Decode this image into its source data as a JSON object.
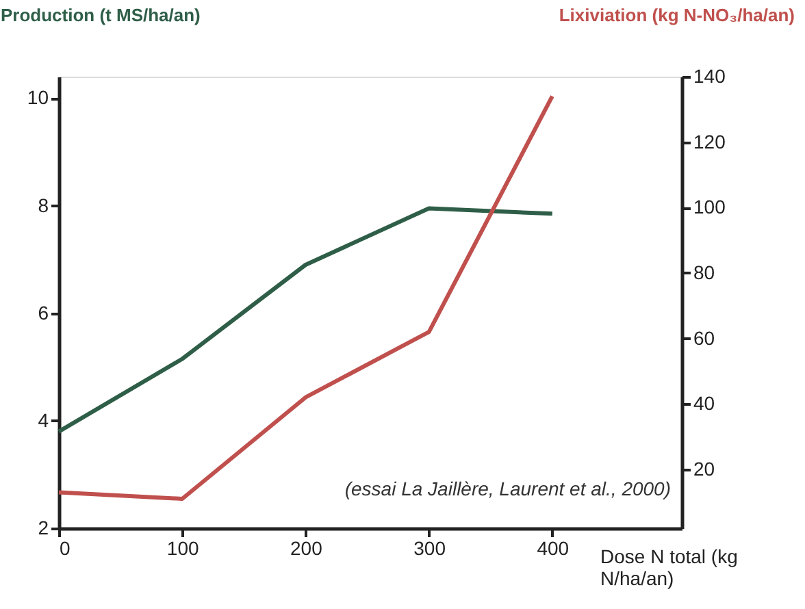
{
  "chart_data": {
    "type": "line",
    "xlabel": "Dose N total (kg N/ha/an)",
    "ylabel": "Production (t MS/ha/an)",
    "y2label": "Lixiviation (kg N-NO₃/ha/an)",
    "x": [
      0,
      100,
      200,
      300,
      400
    ],
    "series": [
      {
        "color": "#2f5e48",
        "values": [
          3.8,
          5.15,
          6.9,
          7.95,
          7.85
        ]
      },
      {
        "color": "#c0504d",
        "axis": "y2",
        "values": [
          13,
          11,
          42,
          62,
          134
        ]
      }
    ],
    "xlim": [
      0,
      505
    ],
    "xticks": [
      0,
      100,
      200,
      300,
      400
    ],
    "ylim": [
      2,
      10.4
    ],
    "yticks": [
      2,
      4,
      6,
      8,
      10
    ],
    "y2lim": [
      2,
      140
    ],
    "y2ticks": [
      20,
      40,
      60,
      80,
      100,
      120,
      140
    ],
    "annotations": [
      "(essai La Jaillère, Laurent et al., 2000)"
    ],
    "grid": false,
    "marker": "none",
    "line_style": "solid"
  }
}
